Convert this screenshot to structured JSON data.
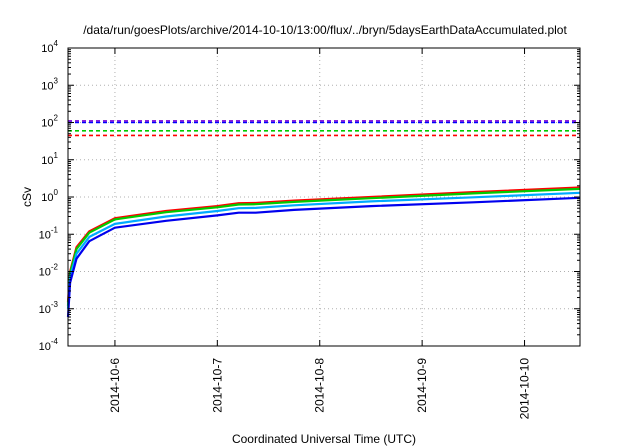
{
  "chart_data": {
    "type": "line",
    "title": "/data/run/goesPlots/archive/2014-10-10/13:00/flux/../bryn/5daysEarthDataAccumulated.plot",
    "xlabel": "Coordinated Universal Time (UTC)",
    "ylabel": "cSv",
    "yscale": "log",
    "ylim": [
      0.0001,
      10000
    ],
    "y_ticks": [
      {
        "value": 0.0001,
        "base": "10",
        "exp": "-4"
      },
      {
        "value": 0.001,
        "base": "10",
        "exp": "-3"
      },
      {
        "value": 0.01,
        "base": "10",
        "exp": "-2"
      },
      {
        "value": 0.1,
        "base": "10",
        "exp": "-1"
      },
      {
        "value": 1,
        "base": "10",
        "exp": "0"
      },
      {
        "value": 10,
        "base": "10",
        "exp": "1"
      },
      {
        "value": 100,
        "base": "10",
        "exp": "2"
      },
      {
        "value": 1000,
        "base": "10",
        "exp": "3"
      },
      {
        "value": 10000,
        "base": "10",
        "exp": "4"
      }
    ],
    "xlim": [
      "2014-10-05T13:00",
      "2014-10-10T13:00"
    ],
    "x_ticks": [
      {
        "value": "2014-10-06T00:00",
        "label": "2014-10-6"
      },
      {
        "value": "2014-10-07T00:00",
        "label": "2014-10-7"
      },
      {
        "value": "2014-10-08T00:00",
        "label": "2014-10-8"
      },
      {
        "value": "2014-10-09T00:00",
        "label": "2014-10-9"
      },
      {
        "value": "2014-10-10T00:00",
        "label": "2014-10-10"
      }
    ],
    "grid": true,
    "thresholds": [
      {
        "value": 110,
        "color": "#7b00d4"
      },
      {
        "value": 100,
        "color": "#0000ff"
      },
      {
        "value": 60,
        "color": "#00cc00"
      },
      {
        "value": 45,
        "color": "#ff0000"
      }
    ],
    "series": [
      {
        "color": "#ff0000",
        "x": [
          "2014-10-05T13:00",
          "2014-10-05T13:30",
          "2014-10-05T15:00",
          "2014-10-05T18:00",
          "2014-10-06T00:00",
          "2014-10-06T12:00",
          "2014-10-07T00:00",
          "2014-10-07T05:00",
          "2014-10-07T09:00",
          "2014-10-07T18:00",
          "2014-10-08T12:00",
          "2014-10-09T12:00",
          "2014-10-10T13:00"
        ],
        "y": [
          0.0015,
          0.01,
          0.045,
          0.12,
          0.27,
          0.42,
          0.57,
          0.68,
          0.69,
          0.8,
          1.0,
          1.35,
          1.8
        ]
      },
      {
        "color": "#00cc00",
        "x": [
          "2014-10-05T13:00",
          "2014-10-05T13:30",
          "2014-10-05T15:00",
          "2014-10-05T18:00",
          "2014-10-06T00:00",
          "2014-10-06T12:00",
          "2014-10-07T00:00",
          "2014-10-07T05:00",
          "2014-10-07T09:00",
          "2014-10-07T18:00",
          "2014-10-08T12:00",
          "2014-10-09T12:00",
          "2014-10-10T13:00"
        ],
        "y": [
          0.0012,
          0.009,
          0.04,
          0.11,
          0.25,
          0.39,
          0.53,
          0.63,
          0.64,
          0.74,
          0.93,
          1.25,
          1.65
        ]
      },
      {
        "color": "#00aaff",
        "x": [
          "2014-10-05T13:00",
          "2014-10-05T13:30",
          "2014-10-05T15:00",
          "2014-10-05T18:00",
          "2014-10-06T00:00",
          "2014-10-06T12:00",
          "2014-10-07T00:00",
          "2014-10-07T05:00",
          "2014-10-07T09:00",
          "2014-10-07T18:00",
          "2014-10-08T12:00",
          "2014-10-09T12:00",
          "2014-10-10T13:00"
        ],
        "y": [
          0.001,
          0.007,
          0.03,
          0.085,
          0.19,
          0.3,
          0.42,
          0.5,
          0.51,
          0.6,
          0.76,
          0.98,
          1.3
        ]
      },
      {
        "color": "#0000ee",
        "x": [
          "2014-10-05T13:00",
          "2014-10-05T13:30",
          "2014-10-05T15:00",
          "2014-10-05T18:00",
          "2014-10-06T00:00",
          "2014-10-06T12:00",
          "2014-10-07T00:00",
          "2014-10-07T05:00",
          "2014-10-07T09:00",
          "2014-10-07T18:00",
          "2014-10-08T12:00",
          "2014-10-09T12:00",
          "2014-10-10T13:00"
        ],
        "y": [
          0.0006,
          0.005,
          0.022,
          0.065,
          0.15,
          0.23,
          0.32,
          0.38,
          0.38,
          0.45,
          0.57,
          0.72,
          0.95
        ]
      }
    ]
  }
}
